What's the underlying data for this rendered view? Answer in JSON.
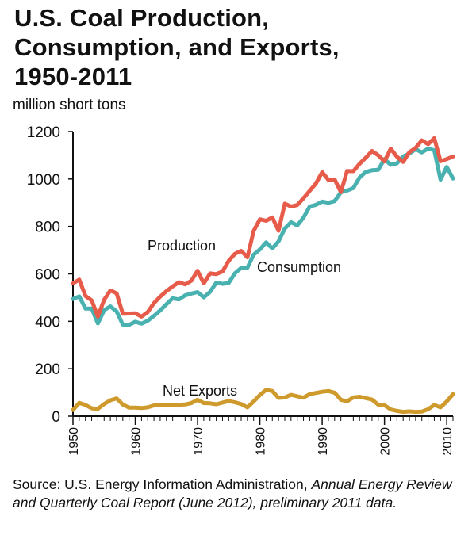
{
  "title_lines": [
    "U.S. Coal Production,",
    "Consumption, and Exports,",
    "1950-2011"
  ],
  "unit_label": "million short tons",
  "source": {
    "prefix": "Source: U.S. Energy Information Administration,",
    "italic": "Annual Energy Review and Quarterly Coal Report (June 2012), preliminary 2011 data."
  },
  "colors": {
    "Production": "#e65b49",
    "Consumption": "#4ab1b1",
    "Net Exports": "#cf9a2c",
    "axis": "#111111"
  },
  "chart_data": {
    "type": "line",
    "title": "U.S. Coal Production, Consumption, and Exports, 1950-2011",
    "xlabel": "",
    "ylabel": "million short tons",
    "xlim": [
      1950,
      2011
    ],
    "ylim": [
      0,
      1200
    ],
    "yticks": [
      0,
      200,
      400,
      600,
      800,
      1000,
      1200
    ],
    "xticks": [
      1950,
      1960,
      1970,
      1980,
      1990,
      2000,
      2010
    ],
    "grid": false,
    "legend": "inline labels",
    "x": [
      1950,
      1951,
      1952,
      1953,
      1954,
      1955,
      1956,
      1957,
      1958,
      1959,
      1960,
      1961,
      1962,
      1963,
      1964,
      1965,
      1966,
      1967,
      1968,
      1969,
      1970,
      1971,
      1972,
      1973,
      1974,
      1975,
      1976,
      1977,
      1978,
      1979,
      1980,
      1981,
      1982,
      1983,
      1984,
      1985,
      1986,
      1987,
      1988,
      1989,
      1990,
      1991,
      1992,
      1993,
      1994,
      1995,
      1996,
      1997,
      1998,
      1999,
      2000,
      2001,
      2002,
      2003,
      2004,
      2005,
      2006,
      2007,
      2008,
      2009,
      2010,
      2011
    ],
    "series": [
      {
        "name": "Production",
        "label": "Production",
        "values": [
          560,
          576,
          507,
          488,
          420,
          491,
          530,
          518,
          432,
          433,
          434,
          420,
          439,
          477,
          504,
          527,
          547,
          565,
          556,
          571,
          613,
          560,
          602,
          599,
          610,
          655,
          685,
          697,
          670,
          781,
          830,
          824,
          838,
          782,
          896,
          884,
          890,
          919,
          950,
          981,
          1029,
          996,
          998,
          945,
          1034,
          1033,
          1064,
          1090,
          1118,
          1100,
          1074,
          1128,
          1094,
          1072,
          1113,
          1131,
          1163,
          1147,
          1172,
          1075,
          1084,
          1095
        ]
      },
      {
        "name": "Consumption",
        "label": "Consumption",
        "values": [
          494,
          505,
          454,
          454,
          391,
          447,
          463,
          442,
          386,
          385,
          398,
          390,
          402,
          423,
          446,
          472,
          497,
          492,
          509,
          517,
          523,
          501,
          524,
          563,
          558,
          562,
          603,
          625,
          626,
          681,
          703,
          733,
          707,
          737,
          791,
          818,
          804,
          837,
          884,
          891,
          905,
          900,
          907,
          944,
          951,
          962,
          1006,
          1030,
          1037,
          1039,
          1084,
          1060,
          1066,
          1095,
          1107,
          1126,
          1112,
          1128,
          1121,
          997,
          1051,
          1002
        ]
      },
      {
        "name": "Net Exports",
        "label": "Net Exports",
        "values": [
          26,
          56,
          47,
          33,
          31,
          51,
          67,
          75,
          49,
          36,
          36,
          34,
          37,
          45,
          46,
          48,
          47,
          48,
          49,
          55,
          69,
          55,
          54,
          50,
          57,
          64,
          58,
          51,
          37,
          62,
          89,
          111,
          106,
          77,
          79,
          90,
          84,
          78,
          93,
          98,
          103,
          106,
          99,
          69,
          63,
          79,
          82,
          76,
          70,
          48,
          46,
          28,
          22,
          18,
          20,
          18,
          19,
          29,
          47,
          37,
          62,
          93
        ]
      }
    ],
    "annotations": [
      "Production",
      "Consumption",
      "Net Exports"
    ]
  }
}
